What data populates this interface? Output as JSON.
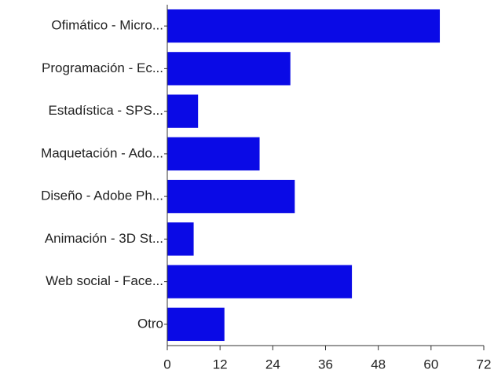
{
  "chart_data": {
    "type": "bar",
    "orientation": "horizontal",
    "categories": [
      "Ofimático - Micro...",
      "Programación - Ec...",
      "Estadística - SPS...",
      "Maquetación - Ado...",
      "Diseño - Adobe Ph...",
      "Animación - 3D St...",
      "Web social - Face...",
      "Otro"
    ],
    "values": [
      62,
      28,
      7,
      21,
      29,
      6,
      42,
      13
    ],
    "color": "#0a0ae6",
    "xlim": [
      0,
      72
    ],
    "xticks": [
      0,
      12,
      24,
      36,
      48,
      60,
      72
    ],
    "grid": false
  }
}
